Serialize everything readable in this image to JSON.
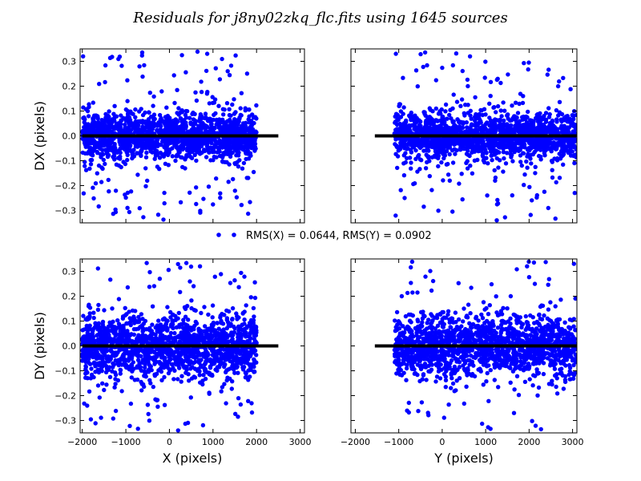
{
  "figure": {
    "suptitle": "Residuals for j8ny02zkq_flc.fits using 1645 sources",
    "legend_label": "RMS(X) = 0.0644, RMS(Y) = 0.0902",
    "marker_color": "#0000ff",
    "zero_line_color": "#000000",
    "source_count": 1645
  },
  "chart_data": [
    {
      "type": "scatter",
      "panel": "DX vs X",
      "xlabel": "",
      "ylabel": "DX (pixels)",
      "xlim": [
        -2050,
        3100
      ],
      "ylim": [
        -0.35,
        0.35
      ],
      "xticks": [
        -2000,
        -1000,
        0,
        1000,
        2000,
        3000
      ],
      "yticks": [
        -0.3,
        -0.2,
        -0.1,
        0.0,
        0.1,
        0.2,
        0.3
      ],
      "ytick_labels": [
        "−0.3",
        "−0.2",
        "−0.1",
        "0.0",
        "0.1",
        "0.2",
        "0.3"
      ],
      "x_range_of_points": [
        -2000,
        2000
      ],
      "zero_line": {
        "x": [
          -2000,
          2500
        ],
        "y": 0.0
      }
    },
    {
      "type": "scatter",
      "panel": "DX vs Y",
      "xlabel": "",
      "ylabel": "",
      "xlim": [
        -2100,
        3100
      ],
      "ylim": [
        -0.35,
        0.35
      ],
      "xticks": [
        -2000,
        -1000,
        0,
        1000,
        2000,
        3000
      ],
      "yticks": [
        -0.3,
        -0.2,
        -0.1,
        0.0,
        0.1,
        0.2,
        0.3
      ],
      "x_range_of_points": [
        -1100,
        3100
      ],
      "zero_line": {
        "x": [
          -1550,
          3100
        ],
        "y": 0.0
      }
    },
    {
      "type": "scatter",
      "panel": "DY vs X",
      "xlabel": "X (pixels)",
      "ylabel": "DY (pixels)",
      "xlim": [
        -2050,
        3100
      ],
      "ylim": [
        -0.35,
        0.35
      ],
      "xticks": [
        -2000,
        -1000,
        0,
        1000,
        2000,
        3000
      ],
      "xtick_labels": [
        "−2000",
        "−1000",
        "0",
        "1000",
        "2000",
        "3000"
      ],
      "yticks": [
        -0.3,
        -0.2,
        -0.1,
        0.0,
        0.1,
        0.2,
        0.3
      ],
      "ytick_labels": [
        "−0.3",
        "−0.2",
        "−0.1",
        "0.0",
        "0.1",
        "0.2",
        "0.3"
      ],
      "x_range_of_points": [
        -2000,
        2000
      ],
      "zero_line": {
        "x": [
          -2000,
          2500
        ],
        "y": 0.0
      }
    },
    {
      "type": "scatter",
      "panel": "DY vs Y",
      "xlabel": "Y (pixels)",
      "ylabel": "",
      "xlim": [
        -2100,
        3100
      ],
      "ylim": [
        -0.35,
        0.35
      ],
      "xticks": [
        -2000,
        -1000,
        0,
        1000,
        2000,
        3000
      ],
      "xtick_labels": [
        "−2000",
        "−1000",
        "0",
        "1000",
        "2000",
        "3000"
      ],
      "yticks": [
        -0.3,
        -0.2,
        -0.1,
        0.0,
        0.1,
        0.2,
        0.3
      ],
      "x_range_of_points": [
        -1100,
        3100
      ],
      "zero_line": {
        "x": [
          -1550,
          3100
        ],
        "y": 0.0
      }
    }
  ]
}
